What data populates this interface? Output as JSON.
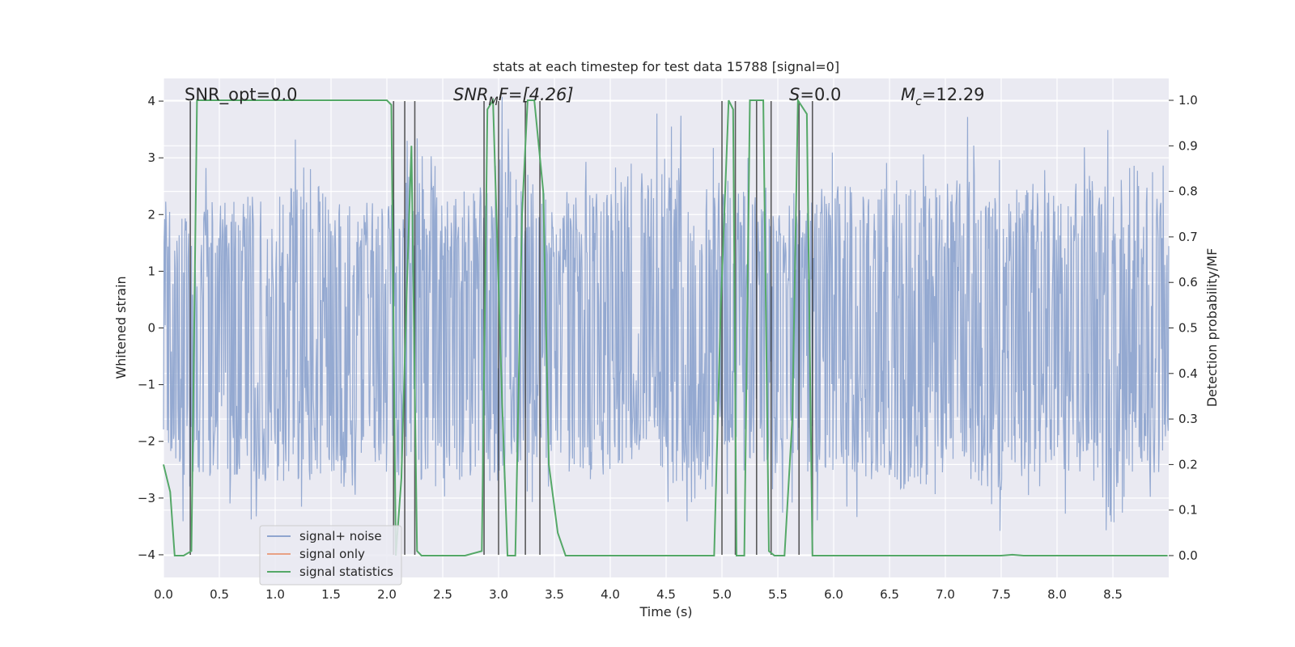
{
  "chart_data": {
    "type": "line",
    "title": "stats at each timestep for test data 15788 [signal=0]",
    "xlabel": "Time (s)",
    "ylabel": "Whitened strain",
    "y2label": "Detection probability/MF",
    "xlim": [
      0,
      9.0
    ],
    "ylim": [
      -4.4,
      4.4
    ],
    "y2lim": [
      -0.048,
      1.048
    ],
    "xticks": [
      0.0,
      0.5,
      1.0,
      1.5,
      2.0,
      2.5,
      3.0,
      3.5,
      4.0,
      4.5,
      5.0,
      5.5,
      6.0,
      6.5,
      7.0,
      7.5,
      8.0,
      8.5
    ],
    "xtick_labels": [
      "0.0",
      "0.5",
      "1.0",
      "1.5",
      "2.0",
      "2.5",
      "3.0",
      "3.5",
      "4.0",
      "4.5",
      "5.0",
      "5.5",
      "6.0",
      "6.5",
      "7.0",
      "7.5",
      "8.0",
      "8.5"
    ],
    "yticks": [
      4,
      3,
      2,
      1,
      0,
      -1,
      -2,
      -3,
      -4
    ],
    "ytick_labels": [
      "4",
      "3",
      "2",
      "1",
      "0",
      "−1",
      "−2",
      "−3",
      "−4"
    ],
    "y2ticks": [
      1.0,
      0.9,
      0.8,
      0.7,
      0.6,
      0.5,
      0.4,
      0.3,
      0.2,
      0.1,
      0.0
    ],
    "y2tick_labels": [
      "1.0",
      "0.9",
      "0.8",
      "0.7",
      "0.6",
      "0.5",
      "0.4",
      "0.3",
      "0.2",
      "0.1",
      "0.0"
    ],
    "annotations": {
      "snr_opt": "SNR_opt=0.0",
      "snr_mf_main": "SNR",
      "snr_mf_sub": "M",
      "snr_mf_rest": "F=[4.26]",
      "s_italic": "S",
      "s_rest": "=0.0",
      "mc_main": "M",
      "mc_sub": "c",
      "mc_rest": "=12.29"
    },
    "legend": {
      "position": "lower-left",
      "entries": [
        {
          "label": "signal+ noise",
          "color": "#8fa5cf"
        },
        {
          "label": "signal only",
          "color": "#e8a184"
        },
        {
          "label": "signal statistics",
          "color": "#55a868"
        }
      ]
    },
    "noise_series": {
      "name": "signal+ noise",
      "color": "#8fa5cf",
      "t_start": 0.0,
      "t_end": 9.0,
      "n_samples": 1800,
      "upper_envelope": [
        [
          0.0,
          2.0
        ],
        [
          0.25,
          2.0
        ],
        [
          0.5,
          2.2
        ],
        [
          0.75,
          2.4
        ],
        [
          1.0,
          2.2
        ],
        [
          1.25,
          3.0
        ],
        [
          1.5,
          2.3
        ],
        [
          1.75,
          2.3
        ],
        [
          2.0,
          2.2
        ],
        [
          2.25,
          2.8
        ],
        [
          2.5,
          2.4
        ],
        [
          2.75,
          2.3
        ],
        [
          3.0,
          3.1
        ],
        [
          3.25,
          2.6
        ],
        [
          3.5,
          2.4
        ],
        [
          3.75,
          2.4
        ],
        [
          4.0,
          2.6
        ],
        [
          4.25,
          3.0
        ],
        [
          4.5,
          3.0
        ],
        [
          4.75,
          2.6
        ],
        [
          5.0,
          2.6
        ],
        [
          5.25,
          2.6
        ],
        [
          5.5,
          2.4
        ],
        [
          5.75,
          2.4
        ],
        [
          6.0,
          2.5
        ],
        [
          6.25,
          2.6
        ],
        [
          6.5,
          2.8
        ],
        [
          6.75,
          2.5
        ],
        [
          7.0,
          2.6
        ],
        [
          7.25,
          2.8
        ],
        [
          7.5,
          2.6
        ],
        [
          7.75,
          2.6
        ],
        [
          8.0,
          2.4
        ],
        [
          8.25,
          2.7
        ],
        [
          8.5,
          2.6
        ],
        [
          8.75,
          3.0
        ],
        [
          9.0,
          2.4
        ]
      ],
      "lower_envelope": [
        [
          0.0,
          -2.2
        ],
        [
          0.25,
          -3.0
        ],
        [
          0.5,
          -2.6
        ],
        [
          0.75,
          -2.6
        ],
        [
          1.0,
          -2.8
        ],
        [
          1.25,
          -2.8
        ],
        [
          1.5,
          -2.6
        ],
        [
          1.75,
          -3.0
        ],
        [
          2.0,
          -2.6
        ],
        [
          2.25,
          -2.6
        ],
        [
          2.5,
          -3.0
        ],
        [
          2.75,
          -2.6
        ],
        [
          3.0,
          -2.8
        ],
        [
          3.25,
          -2.4
        ],
        [
          3.5,
          -2.4
        ],
        [
          3.75,
          -2.8
        ],
        [
          4.0,
          -2.6
        ],
        [
          4.25,
          -2.4
        ],
        [
          4.5,
          -2.6
        ],
        [
          4.75,
          -3.2
        ],
        [
          5.0,
          -2.6
        ],
        [
          5.25,
          -2.6
        ],
        [
          5.5,
          -2.4
        ],
        [
          5.75,
          -2.6
        ],
        [
          6.0,
          -2.6
        ],
        [
          6.25,
          -2.6
        ],
        [
          6.5,
          -2.8
        ],
        [
          6.75,
          -3.0
        ],
        [
          7.0,
          -2.6
        ],
        [
          7.25,
          -2.8
        ],
        [
          7.5,
          -3.0
        ],
        [
          7.75,
          -2.6
        ],
        [
          8.0,
          -2.6
        ],
        [
          8.25,
          -2.6
        ],
        [
          8.5,
          -3.6
        ],
        [
          8.75,
          -2.6
        ],
        [
          9.0,
          -2.6
        ]
      ]
    },
    "stat_series": {
      "name": "signal statistics",
      "color": "#55a868",
      "axis": "right",
      "x": [
        0.0,
        0.06,
        0.1,
        0.18,
        0.25,
        0.3,
        0.33,
        0.5,
        1.0,
        1.5,
        2.0,
        2.04,
        2.08,
        2.13,
        2.18,
        2.22,
        2.27,
        2.31,
        2.35,
        2.4,
        2.5,
        2.7,
        2.85,
        2.9,
        2.95,
        3.03,
        3.08,
        3.15,
        3.21,
        3.26,
        3.32,
        3.4,
        3.45,
        3.53,
        3.6,
        3.65,
        3.75,
        3.9,
        4.5,
        4.93,
        4.99,
        5.06,
        5.1,
        5.13,
        5.17,
        5.2,
        5.25,
        5.37,
        5.42,
        5.47,
        5.56,
        5.63,
        5.68,
        5.76,
        5.81,
        5.85,
        6.0,
        7.0,
        7.5,
        7.6,
        7.7,
        8.0,
        8.5,
        8.99
      ],
      "values": [
        0.2,
        0.14,
        0.0,
        0.0,
        0.01,
        1.0,
        1.0,
        1.0,
        1.0,
        1.0,
        1.0,
        0.99,
        0.0,
        0.17,
        0.6,
        0.9,
        0.01,
        0.0,
        0.0,
        0.0,
        0.0,
        0.0,
        0.01,
        0.98,
        1.0,
        0.35,
        0.0,
        0.0,
        0.75,
        1.0,
        1.0,
        0.8,
        0.2,
        0.05,
        0.0,
        0.0,
        0.0,
        0.0,
        0.0,
        0.0,
        0.55,
        1.0,
        0.98,
        0.0,
        0.0,
        0.0,
        1.0,
        1.0,
        0.01,
        0.0,
        0.0,
        0.3,
        1.0,
        0.97,
        0.0,
        0.0,
        0.0,
        0.0,
        0.0,
        0.002,
        0.0,
        0.0,
        0.0,
        0.0
      ]
    },
    "signal_only_series": {
      "name": "signal only",
      "color": "#e8a184",
      "values_note": "not visible"
    },
    "vertical_markers": {
      "color": "#333333",
      "x": [
        0.24,
        2.06,
        2.16,
        2.25,
        2.87,
        3.0,
        3.24,
        3.37,
        5.0,
        5.12,
        5.31,
        5.44,
        5.69,
        5.81
      ],
      "y_top": 4.0,
      "y_bottom": -4.0
    }
  }
}
